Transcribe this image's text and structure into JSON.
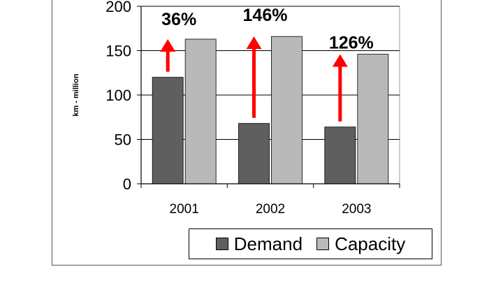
{
  "chart_data": {
    "type": "bar",
    "categories": [
      "2001",
      "2002",
      "2003"
    ],
    "series": [
      {
        "name": "Demand",
        "values": [
          120,
          68,
          64
        ],
        "color": "#5f5f5f"
      },
      {
        "name": "Capacity",
        "values": [
          163,
          166,
          146
        ],
        "color": "#b9b9b9"
      }
    ],
    "ylabel": "km - million",
    "ylim": [
      0,
      200
    ],
    "yticks": [
      0,
      50,
      100,
      150,
      200
    ],
    "grid": true,
    "legend_position": "bottom",
    "annotations": [
      {
        "category": "2001",
        "text": "36%",
        "arrow_color": "#ff0000"
      },
      {
        "category": "2002",
        "text": "146%",
        "arrow_color": "#ff0000"
      },
      {
        "category": "2003",
        "text": "126%",
        "arrow_color": "#ff0000"
      }
    ]
  }
}
